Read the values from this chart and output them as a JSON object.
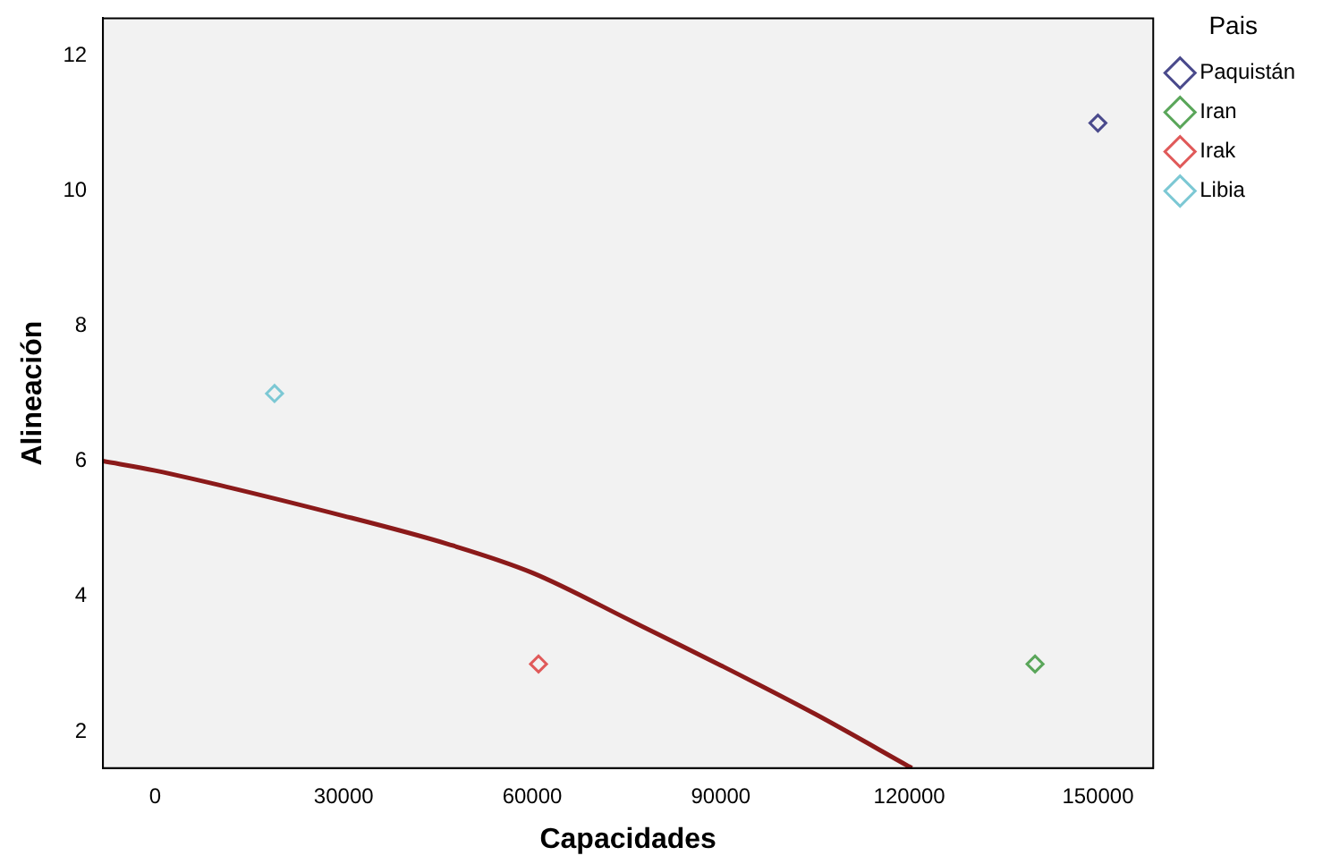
{
  "chart_data": {
    "type": "scatter",
    "xlabel": "Capacidades",
    "ylabel": "Alineación",
    "legend_title": "Pais",
    "legend": "top right",
    "marker": "diamond",
    "grid": false,
    "xlim": [
      -8300,
      158800
    ],
    "ylim": [
      1.46,
      12.55
    ],
    "xticks": [
      0,
      30000,
      60000,
      90000,
      120000,
      150000
    ],
    "yticks": [
      2,
      4,
      6,
      8,
      10,
      12
    ],
    "series": [
      {
        "name": "Paquistán",
        "color": "#4a4a8c",
        "x": [
          150000
        ],
        "values": [
          11
        ]
      },
      {
        "name": "Iran",
        "color": "#5aa65a",
        "x": [
          140000
        ],
        "values": [
          3
        ]
      },
      {
        "name": "Irak",
        "color": "#e05a5a",
        "x": [
          61000
        ],
        "values": [
          3
        ]
      },
      {
        "name": "Libia",
        "color": "#7cc8d4",
        "x": [
          19000
        ],
        "values": [
          7
        ]
      },
      {
        "type": "line",
        "marker": "none",
        "color": "#8b1a1a",
        "x": [
          -8300,
          0,
          30000,
          46700,
          60000,
          75900,
          90000,
          105000,
          120400
        ],
        "values": [
          6.0,
          5.86,
          5.19,
          4.77,
          4.35,
          3.63,
          2.98,
          2.26,
          1.46
        ]
      }
    ]
  }
}
